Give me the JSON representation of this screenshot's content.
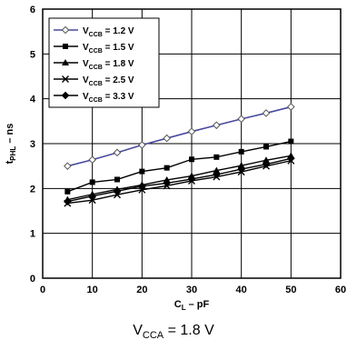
{
  "chart_data": {
    "type": "line",
    "xlabel_main": "C",
    "xlabel_sub": "L",
    "xlabel_rest": " – pF",
    "ylabel_main": "t",
    "ylabel_sub": "PHL",
    "ylabel_rest": " – ns",
    "xlim": [
      0,
      60
    ],
    "ylim": [
      0,
      6
    ],
    "xticks": [
      "0",
      "10",
      "20",
      "30",
      "40",
      "50",
      "60"
    ],
    "yticks": [
      "0",
      "1",
      "2",
      "3",
      "4",
      "5",
      "6"
    ],
    "grid": true,
    "legend_position": "top-left",
    "x": [
      5,
      10,
      15,
      20,
      25,
      30,
      35,
      40,
      45,
      50
    ],
    "series": [
      {
        "name_main": "V",
        "name_sub": "CCB",
        "name_rest": " = 1.2 V",
        "marker": "diamond-open",
        "color": "#4a4aa0",
        "values": [
          2.5,
          2.64,
          2.8,
          2.97,
          3.12,
          3.27,
          3.41,
          3.55,
          3.68,
          3.82
        ]
      },
      {
        "name_main": "V",
        "name_sub": "CCB",
        "name_rest": " = 1.5 V",
        "marker": "square",
        "color": "#000000",
        "values": [
          1.93,
          2.14,
          2.2,
          2.38,
          2.46,
          2.65,
          2.7,
          2.82,
          2.93,
          3.05
        ]
      },
      {
        "name_main": "V",
        "name_sub": "CCB",
        "name_rest": " = 1.8 V",
        "marker": "triangle",
        "color": "#000000",
        "values": [
          1.75,
          1.87,
          1.98,
          2.08,
          2.19,
          2.28,
          2.4,
          2.51,
          2.63,
          2.73
        ]
      },
      {
        "name_main": "V",
        "name_sub": "CCB",
        "name_rest": " = 2.5 V",
        "marker": "x",
        "color": "#000000",
        "values": [
          1.67,
          1.74,
          1.86,
          1.97,
          2.06,
          2.17,
          2.26,
          2.37,
          2.5,
          2.62
        ]
      },
      {
        "name_main": "V",
        "name_sub": "CCB",
        "name_rest": " = 3.3 V",
        "marker": "diamond",
        "color": "#000000",
        "values": [
          1.71,
          1.83,
          1.94,
          2.05,
          2.12,
          2.21,
          2.31,
          2.43,
          2.54,
          2.67
        ]
      }
    ]
  },
  "caption": {
    "main": "V",
    "sub": "CCA",
    "rest": " = 1.8 V"
  }
}
